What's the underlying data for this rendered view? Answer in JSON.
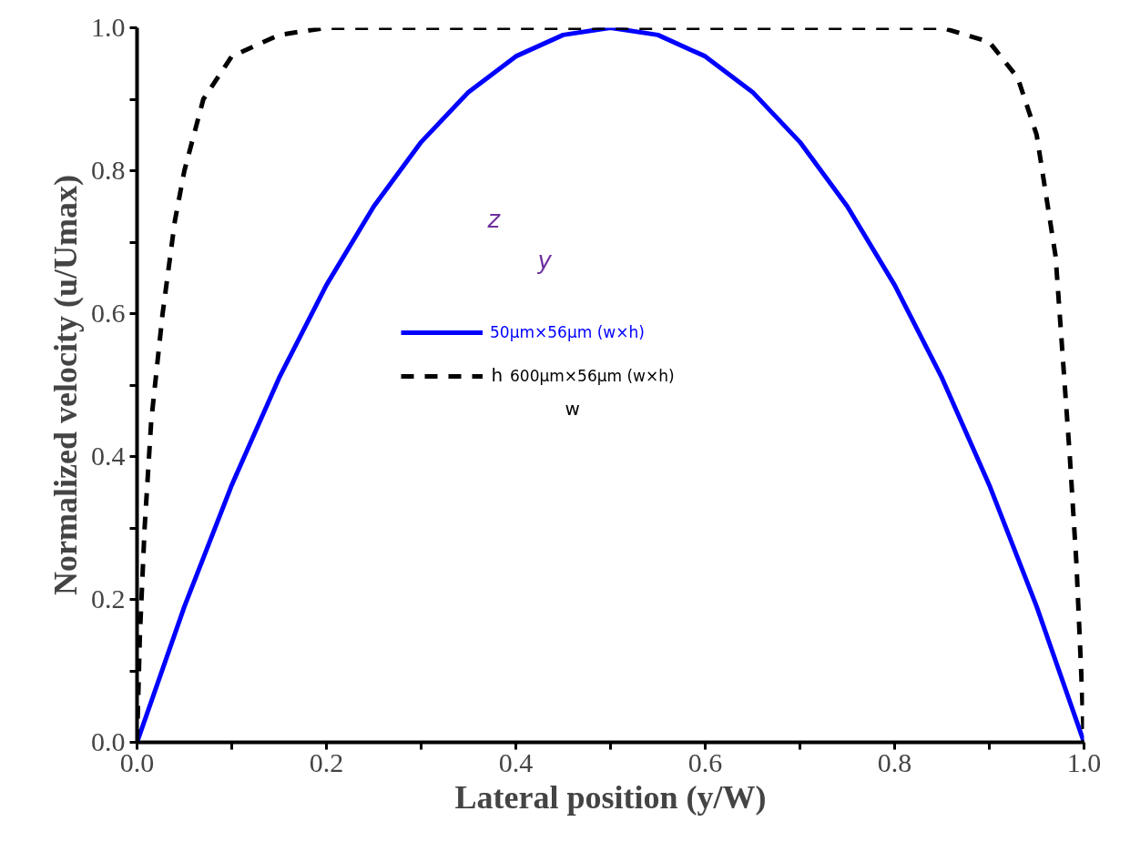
{
  "chart_data": {
    "type": "line",
    "xlabel": "Lateral position (y/W)",
    "ylabel": "Normalized velocity (u/Umax)",
    "xlim": [
      0,
      1
    ],
    "ylim": [
      0,
      1
    ],
    "xticks": [
      {
        "value": 0,
        "label": "0.0"
      },
      {
        "value": 0.1,
        "label": null
      },
      {
        "value": 0.2,
        "label": "0.2"
      },
      {
        "value": 0.3,
        "label": null
      },
      {
        "value": 0.4,
        "label": "0.4"
      },
      {
        "value": 0.5,
        "label": null
      },
      {
        "value": 0.6,
        "label": "0.6"
      },
      {
        "value": 0.7,
        "label": null
      },
      {
        "value": 0.8,
        "label": "0.8"
      },
      {
        "value": 0.9,
        "label": null
      },
      {
        "value": 1,
        "label": "1.0"
      }
    ],
    "yticks": [
      {
        "value": 0,
        "label": "0.0"
      },
      {
        "value": 0.1,
        "label": null
      },
      {
        "value": 0.2,
        "label": "0.2"
      },
      {
        "value": 0.3,
        "label": null
      },
      {
        "value": 0.4,
        "label": "0.4"
      },
      {
        "value": 0.5,
        "label": null
      },
      {
        "value": 0.6,
        "label": "0.6"
      },
      {
        "value": 0.7,
        "label": null
      },
      {
        "value": 0.8,
        "label": "0.8"
      },
      {
        "value": 0.9,
        "label": null
      },
      {
        "value": 1,
        "label": "1.0"
      }
    ],
    "grid": false,
    "legend": "center",
    "series": [
      {
        "name": "50μm×56μm (w×h)",
        "color": "#0000ff",
        "line_style": "solid",
        "x": [
          0,
          0.05,
          0.1,
          0.15,
          0.2,
          0.25,
          0.3,
          0.35,
          0.4,
          0.45,
          0.5,
          0.55,
          0.6,
          0.65,
          0.7,
          0.75,
          0.8,
          0.85,
          0.9,
          0.95,
          1
        ],
        "values": [
          0,
          0.19,
          0.36,
          0.51,
          0.64,
          0.75,
          0.84,
          0.91,
          0.96,
          0.99,
          1.0,
          0.99,
          0.96,
          0.91,
          0.84,
          0.75,
          0.64,
          0.51,
          0.36,
          0.19,
          0
        ]
      },
      {
        "name": "600μm×56μm (w×h)",
        "color": "#000000",
        "line_style": "dashed",
        "x": [
          0,
          0.003,
          0.008,
          0.015,
          0.027,
          0.04,
          0.05,
          0.07,
          0.1,
          0.15,
          0.2,
          0.3,
          0.5,
          0.7,
          0.8,
          0.85,
          0.9,
          0.93,
          0.95,
          0.97,
          0.985,
          0.992,
          0.997,
          1
        ],
        "values": [
          0,
          0.15,
          0.3,
          0.45,
          0.6,
          0.73,
          0.8,
          0.9,
          0.96,
          0.99,
          1.0,
          1.0,
          1.0,
          1.0,
          1.0,
          1.0,
          0.98,
          0.93,
          0.85,
          0.68,
          0.4,
          0.25,
          0.1,
          0
        ]
      }
    ],
    "annotations": [
      "z",
      "y",
      "h",
      "w"
    ]
  }
}
